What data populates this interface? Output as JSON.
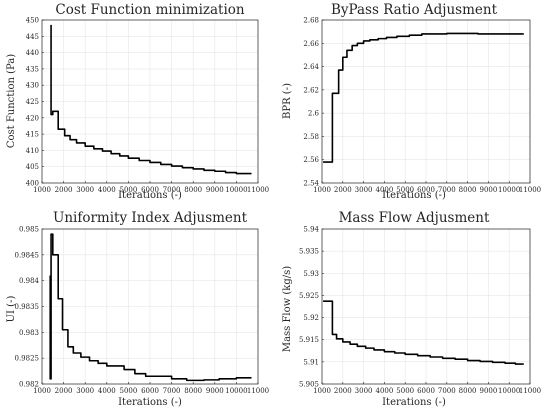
{
  "chart_data": [
    {
      "type": "line",
      "title": "Cost Function minimization",
      "xlabel": "Iterations (-)",
      "ylabel": "Cost Function (Pa)",
      "xlim": [
        1000,
        11000
      ],
      "ylim": [
        400,
        450
      ],
      "xticks": [
        1000,
        2000,
        3000,
        4000,
        5000,
        6000,
        7000,
        8000,
        9000,
        10000,
        11000
      ],
      "yticks": [
        400,
        405,
        410,
        415,
        420,
        425,
        430,
        435,
        440,
        445,
        450
      ],
      "xtick_labels": [
        "1000",
        "2000",
        "3000",
        "4000",
        "5000",
        "6000",
        "7000",
        "8000",
        "9000",
        "10000",
        "11000"
      ],
      "ytick_labels": [
        "400",
        "405",
        "410",
        "415",
        "420",
        "425",
        "430",
        "435",
        "440",
        "445",
        "450"
      ],
      "grid": true,
      "series": [
        {
          "color": "#000000",
          "x": [
            1420,
            1420,
            1500,
            1500,
            1750,
            1750,
            2050,
            2050,
            2300,
            2300,
            2600,
            2600,
            3000,
            3000,
            3400,
            3400,
            3800,
            3800,
            4200,
            4200,
            4600,
            4600,
            5000,
            5000,
            5500,
            5500,
            6000,
            6000,
            6500,
            6500,
            7000,
            7000,
            7500,
            7500,
            8000,
            8000,
            8500,
            8500,
            9000,
            9000,
            9500,
            9500,
            10000,
            10000,
            10700
          ],
          "y": [
            448.5,
            421,
            421,
            422,
            422,
            416.5,
            416.5,
            414.5,
            414.5,
            413.3,
            413.3,
            412.3,
            412.3,
            411.3,
            411.3,
            410.5,
            410.5,
            409.8,
            409.8,
            409.0,
            409.0,
            408.3,
            408.3,
            407.6,
            407.6,
            406.9,
            406.9,
            406.3,
            406.3,
            405.7,
            405.7,
            405.2,
            405.2,
            404.7,
            404.7,
            404.3,
            404.3,
            403.9,
            403.9,
            403.6,
            403.6,
            403.2,
            403.2,
            402.9,
            402.9
          ]
        }
      ]
    },
    {
      "type": "line",
      "title": "ByPass Ratio Adjusment",
      "xlabel": "Iterations (-)",
      "ylabel": "BPR (-)",
      "xlim": [
        1000,
        11000
      ],
      "ylim": [
        2.54,
        2.68
      ],
      "xticks": [
        1000,
        2000,
        3000,
        4000,
        5000,
        6000,
        7000,
        8000,
        9000,
        10000,
        11000
      ],
      "yticks": [
        2.54,
        2.56,
        2.58,
        2.6,
        2.62,
        2.64,
        2.66,
        2.68
      ],
      "xtick_labels": [
        "1000",
        "2000",
        "3000",
        "4000",
        "5000",
        "6000",
        "7000",
        "8000",
        "9000",
        "10000",
        "11000"
      ],
      "ytick_labels": [
        "2.54",
        "2.56",
        "2.58",
        "2.6",
        "2.62",
        "2.64",
        "2.66",
        "2.68"
      ],
      "grid": true,
      "series": [
        {
          "color": "#000000",
          "x": [
            1050,
            1500,
            1500,
            1800,
            1800,
            2000,
            2000,
            2200,
            2200,
            2450,
            2450,
            2700,
            2700,
            3000,
            3000,
            3300,
            3300,
            3700,
            3700,
            4100,
            4100,
            4600,
            4600,
            5200,
            5200,
            5800,
            5800,
            7000,
            7000,
            8500,
            8500,
            10700
          ],
          "y": [
            2.558,
            2.558,
            2.617,
            2.617,
            2.637,
            2.637,
            2.648,
            2.648,
            2.654,
            2.654,
            2.658,
            2.658,
            2.66,
            2.66,
            2.662,
            2.662,
            2.663,
            2.663,
            2.664,
            2.664,
            2.665,
            2.665,
            2.666,
            2.666,
            2.667,
            2.667,
            2.668,
            2.668,
            2.6685,
            2.6685,
            2.668,
            2.668
          ]
        }
      ]
    },
    {
      "type": "line",
      "title": "Uniformity Index Adjusment",
      "xlabel": "Iterations (-)",
      "ylabel": "UI (-)",
      "xlim": [
        1000,
        11000
      ],
      "ylim": [
        0.982,
        0.985
      ],
      "xticks": [
        1000,
        2000,
        3000,
        4000,
        5000,
        6000,
        7000,
        8000,
        9000,
        10000,
        11000
      ],
      "yticks": [
        0.982,
        0.9825,
        0.983,
        0.9835,
        0.984,
        0.9845,
        0.985
      ],
      "xtick_labels": [
        "1000",
        "2000",
        "3000",
        "4000",
        "5000",
        "6000",
        "7000",
        "8000",
        "9000",
        "10000",
        "11000"
      ],
      "ytick_labels": [
        "0.982",
        "0.9825",
        "0.983",
        "0.9835",
        "0.984",
        "0.9845",
        "0.985"
      ],
      "grid": true,
      "series": [
        {
          "color": "#000000",
          "x": [
            1380,
            1380,
            1420,
            1420,
            1500,
            1500,
            1750,
            1750,
            1950,
            1950,
            2200,
            2200,
            2450,
            2450,
            2800,
            2800,
            3200,
            3200,
            3600,
            3600,
            4000,
            4000,
            4800,
            4800,
            5300,
            5300,
            5800,
            5800,
            7000,
            7000,
            7700,
            7700,
            8500,
            8500,
            9200,
            9200,
            10000,
            10000,
            10700
          ],
          "y": [
            0.9841,
            0.9821,
            0.9821,
            0.9849,
            0.9849,
            0.9845,
            0.9845,
            0.98365,
            0.98365,
            0.98305,
            0.98305,
            0.98272,
            0.98272,
            0.9826,
            0.9826,
            0.98252,
            0.98252,
            0.98245,
            0.98245,
            0.9824,
            0.9824,
            0.98235,
            0.98235,
            0.98228,
            0.98228,
            0.9822,
            0.9822,
            0.98215,
            0.98215,
            0.9821,
            0.9821,
            0.98207,
            0.98207,
            0.98208,
            0.98208,
            0.9821,
            0.9821,
            0.98212,
            0.98212
          ]
        }
      ]
    },
    {
      "type": "line",
      "title": "Mass Flow Adjusment",
      "xlabel": "Iterations (-)",
      "ylabel": "Mass Flow (kg/s)",
      "xlim": [
        1000,
        11000
      ],
      "ylim": [
        5.905,
        5.94
      ],
      "xticks": [
        1000,
        2000,
        3000,
        4000,
        5000,
        6000,
        7000,
        8000,
        9000,
        10000,
        11000
      ],
      "yticks": [
        5.905,
        5.91,
        5.915,
        5.92,
        5.925,
        5.93,
        5.935,
        5.94
      ],
      "xtick_labels": [
        "1000",
        "2000",
        "3000",
        "4000",
        "5000",
        "6000",
        "7000",
        "8000",
        "9000",
        "10000",
        "11000"
      ],
      "ytick_labels": [
        "5.905",
        "5.91",
        "5.915",
        "5.92",
        "5.925",
        "5.93",
        "5.935",
        "5.94"
      ],
      "grid": true,
      "series": [
        {
          "color": "#000000",
          "x": [
            1050,
            1500,
            1500,
            1700,
            1700,
            2000,
            2000,
            2350,
            2350,
            2700,
            2700,
            3100,
            3100,
            3500,
            3500,
            4000,
            4000,
            4500,
            4500,
            5000,
            5000,
            5600,
            5600,
            6200,
            6200,
            6800,
            6800,
            7400,
            7400,
            8000,
            8000,
            8600,
            8600,
            9200,
            9200,
            9800,
            9800,
            10300,
            10300,
            10700
          ],
          "y": [
            5.9237,
            5.9237,
            5.9162,
            5.9162,
            5.9152,
            5.9152,
            5.9145,
            5.9145,
            5.914,
            5.914,
            5.9135,
            5.9135,
            5.9131,
            5.9131,
            5.9127,
            5.9127,
            5.9123,
            5.9123,
            5.912,
            5.912,
            5.9117,
            5.9117,
            5.9114,
            5.9114,
            5.9111,
            5.9111,
            5.9108,
            5.9108,
            5.9106,
            5.9106,
            5.9103,
            5.9103,
            5.9101,
            5.9101,
            5.9099,
            5.9099,
            5.9097,
            5.9097,
            5.9095,
            5.9095
          ]
        }
      ]
    }
  ]
}
